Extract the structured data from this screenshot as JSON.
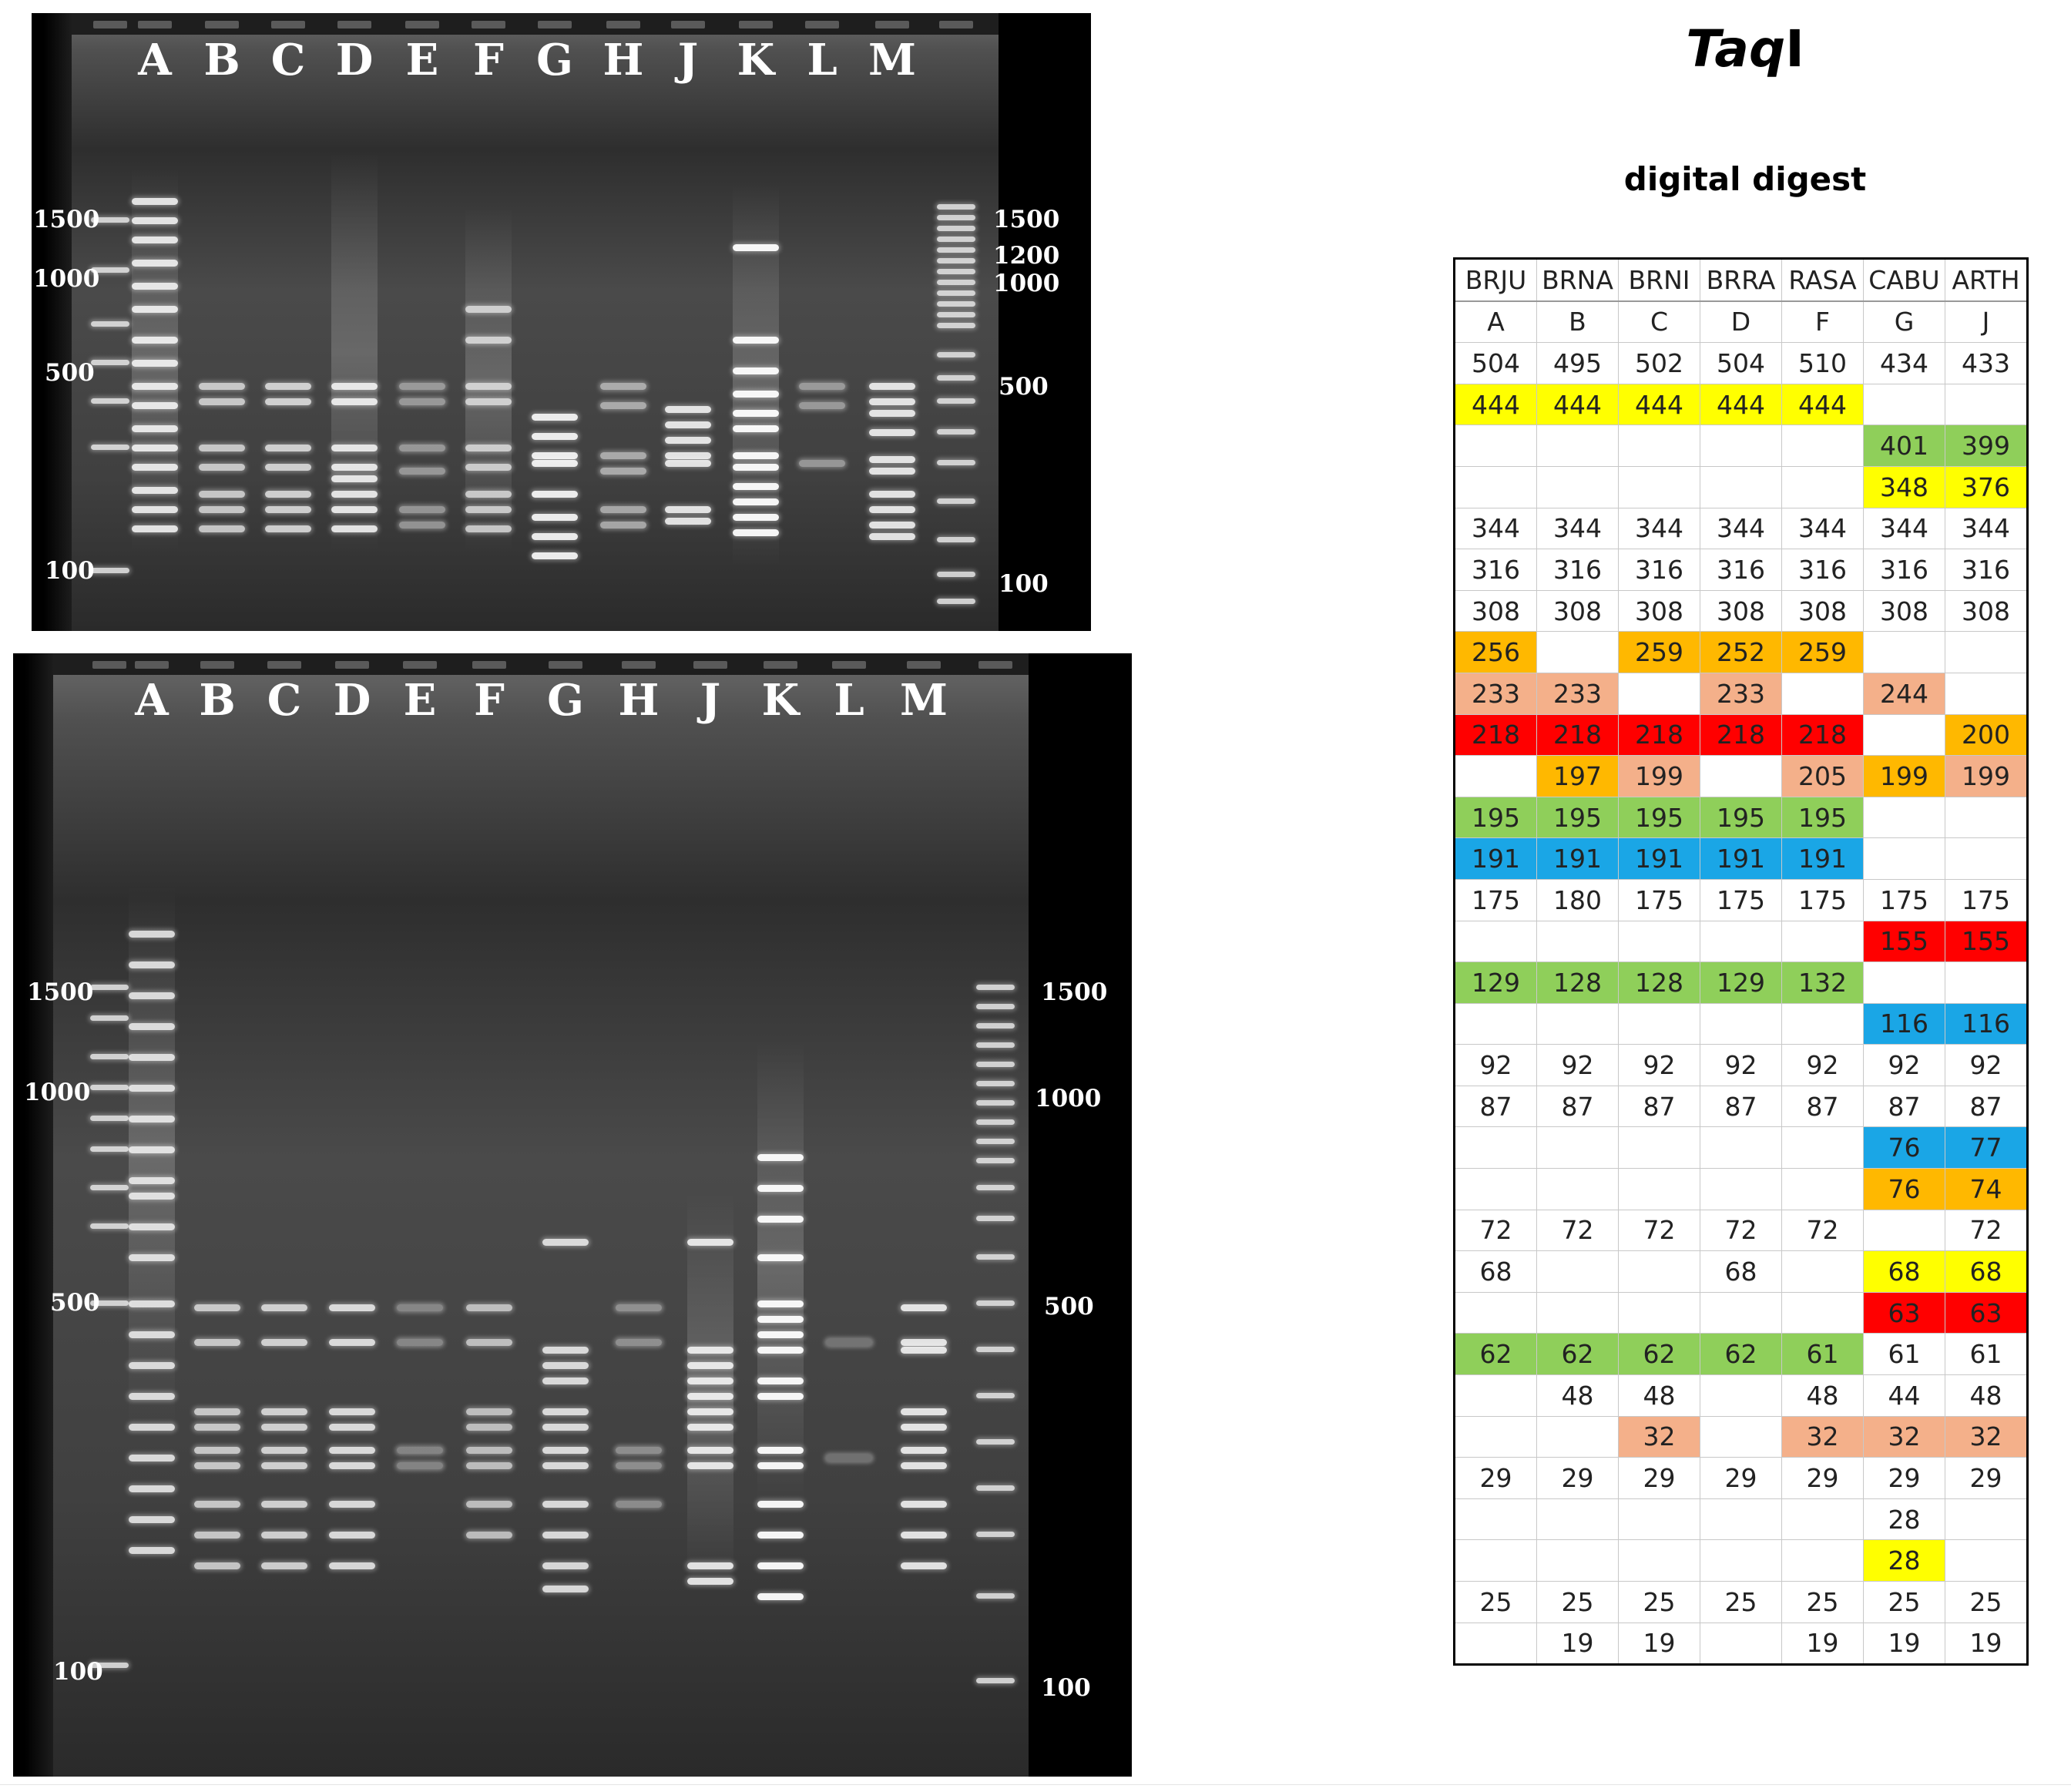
{
  "gel_top": {
    "lanes": [
      "A",
      "B",
      "C",
      "D",
      "E",
      "F",
      "G",
      "H",
      "J",
      "K",
      "L",
      "M"
    ],
    "left_marker_labels": [
      "1500",
      "1000",
      "500",
      "100"
    ],
    "right_marker_labels": [
      "1500",
      "1200",
      "1000",
      "500",
      "100"
    ]
  },
  "gel_bottom": {
    "lanes": [
      "A",
      "B",
      "C",
      "D",
      "E",
      "F",
      "G",
      "H",
      "J",
      "K",
      "L",
      "M"
    ],
    "left_marker_labels": [
      "1500",
      "1000",
      "500",
      "100"
    ],
    "right_marker_labels": [
      "1500",
      "1000",
      "500",
      "100"
    ]
  },
  "title_main": "Taq",
  "title_suffix": "I",
  "subtitle": "digital digest",
  "table": {
    "headers": [
      "BRJU",
      "BRNA",
      "BRNI",
      "BRRA",
      "RASA",
      "CABU",
      "ARTH"
    ],
    "lanes": [
      "A",
      "B",
      "C",
      "D",
      "F",
      "G",
      "J"
    ],
    "colors": {
      "y": "#ffff00",
      "g": "#8fcf5a",
      "o": "#ffb800",
      "s": "#f4b08a",
      "r": "#ff0000",
      "b": "#1aa6e6"
    },
    "rows": [
      [
        [
          "504",
          ""
        ],
        [
          "495",
          ""
        ],
        [
          "502",
          ""
        ],
        [
          "504",
          ""
        ],
        [
          "510",
          ""
        ],
        [
          "434",
          ""
        ],
        [
          "433",
          ""
        ]
      ],
      [
        [
          "444",
          "y"
        ],
        [
          "444",
          "y"
        ],
        [
          "444",
          "y"
        ],
        [
          "444",
          "y"
        ],
        [
          "444",
          "y"
        ],
        [
          "",
          ""
        ],
        [
          "",
          ""
        ]
      ],
      [
        [
          "",
          ""
        ],
        [
          "",
          ""
        ],
        [
          "",
          ""
        ],
        [
          "",
          ""
        ],
        [
          "",
          ""
        ],
        [
          "401",
          "g"
        ],
        [
          "399",
          "g"
        ]
      ],
      [
        [
          "",
          ""
        ],
        [
          "",
          ""
        ],
        [
          "",
          ""
        ],
        [
          "",
          ""
        ],
        [
          "",
          ""
        ],
        [
          "348",
          "y"
        ],
        [
          "376",
          "y"
        ]
      ],
      [
        [
          "344",
          ""
        ],
        [
          "344",
          ""
        ],
        [
          "344",
          ""
        ],
        [
          "344",
          ""
        ],
        [
          "344",
          ""
        ],
        [
          "344",
          ""
        ],
        [
          "344",
          ""
        ]
      ],
      [
        [
          "316",
          ""
        ],
        [
          "316",
          ""
        ],
        [
          "316",
          ""
        ],
        [
          "316",
          ""
        ],
        [
          "316",
          ""
        ],
        [
          "316",
          ""
        ],
        [
          "316",
          ""
        ]
      ],
      [
        [
          "308",
          ""
        ],
        [
          "308",
          ""
        ],
        [
          "308",
          ""
        ],
        [
          "308",
          ""
        ],
        [
          "308",
          ""
        ],
        [
          "308",
          ""
        ],
        [
          "308",
          ""
        ]
      ],
      [
        [
          "256",
          "o"
        ],
        [
          "",
          ""
        ],
        [
          "259",
          "o"
        ],
        [
          "252",
          "o"
        ],
        [
          "259",
          "o"
        ],
        [
          "",
          ""
        ],
        [
          "",
          ""
        ]
      ],
      [
        [
          "233",
          "s"
        ],
        [
          "233",
          "s"
        ],
        [
          "",
          ""
        ],
        [
          "233",
          "s"
        ],
        [
          "",
          ""
        ],
        [
          "244",
          "s"
        ],
        [
          "",
          ""
        ]
      ],
      [
        [
          "218",
          "r"
        ],
        [
          "218",
          "r"
        ],
        [
          "218",
          "r"
        ],
        [
          "218",
          "r"
        ],
        [
          "218",
          "r"
        ],
        [
          "",
          ""
        ],
        [
          "200",
          "o"
        ]
      ],
      [
        [
          "",
          ""
        ],
        [
          "197",
          "o"
        ],
        [
          "199",
          "s"
        ],
        [
          "",
          ""
        ],
        [
          "205",
          "s"
        ],
        [
          "199",
          "o"
        ],
        [
          "199",
          "s"
        ]
      ],
      [
        [
          "195",
          "g"
        ],
        [
          "195",
          "g"
        ],
        [
          "195",
          "g"
        ],
        [
          "195",
          "g"
        ],
        [
          "195",
          "g"
        ],
        [
          "",
          ""
        ],
        [
          "",
          ""
        ]
      ],
      [
        [
          "191",
          "b"
        ],
        [
          "191",
          "b"
        ],
        [
          "191",
          "b"
        ],
        [
          "191",
          "b"
        ],
        [
          "191",
          "b"
        ],
        [
          "",
          ""
        ],
        [
          "",
          ""
        ]
      ],
      [
        [
          "175",
          ""
        ],
        [
          "180",
          ""
        ],
        [
          "175",
          ""
        ],
        [
          "175",
          ""
        ],
        [
          "175",
          ""
        ],
        [
          "175",
          ""
        ],
        [
          "175",
          ""
        ]
      ],
      [
        [
          "",
          ""
        ],
        [
          "",
          ""
        ],
        [
          "",
          ""
        ],
        [
          "",
          ""
        ],
        [
          "",
          ""
        ],
        [
          "155",
          "r"
        ],
        [
          "155",
          "r"
        ]
      ],
      [
        [
          "129",
          "g"
        ],
        [
          "128",
          "g"
        ],
        [
          "128",
          "g"
        ],
        [
          "129",
          "g"
        ],
        [
          "132",
          "g"
        ],
        [
          "",
          ""
        ],
        [
          "",
          ""
        ]
      ],
      [
        [
          "",
          ""
        ],
        [
          "",
          ""
        ],
        [
          "",
          ""
        ],
        [
          "",
          ""
        ],
        [
          "",
          ""
        ],
        [
          "116",
          "b"
        ],
        [
          "116",
          "b"
        ]
      ],
      [
        [
          "92",
          ""
        ],
        [
          "92",
          ""
        ],
        [
          "92",
          ""
        ],
        [
          "92",
          ""
        ],
        [
          "92",
          ""
        ],
        [
          "92",
          ""
        ],
        [
          "92",
          ""
        ]
      ],
      [
        [
          "87",
          ""
        ],
        [
          "87",
          ""
        ],
        [
          "87",
          ""
        ],
        [
          "87",
          ""
        ],
        [
          "87",
          ""
        ],
        [
          "87",
          ""
        ],
        [
          "87",
          ""
        ]
      ],
      [
        [
          "",
          ""
        ],
        [
          "",
          ""
        ],
        [
          "",
          ""
        ],
        [
          "",
          ""
        ],
        [
          "",
          ""
        ],
        [
          "76",
          "b"
        ],
        [
          "77",
          "b"
        ]
      ],
      [
        [
          "",
          ""
        ],
        [
          "",
          ""
        ],
        [
          "",
          ""
        ],
        [
          "",
          ""
        ],
        [
          "",
          ""
        ],
        [
          "76",
          "o"
        ],
        [
          "74",
          "o"
        ]
      ],
      [
        [
          "72",
          ""
        ],
        [
          "72",
          ""
        ],
        [
          "72",
          ""
        ],
        [
          "72",
          ""
        ],
        [
          "72",
          ""
        ],
        [
          "",
          ""
        ],
        [
          "72",
          ""
        ]
      ],
      [
        [
          "68",
          ""
        ],
        [
          "",
          ""
        ],
        [
          "",
          ""
        ],
        [
          "68",
          ""
        ],
        [
          "",
          ""
        ],
        [
          "68",
          "y"
        ],
        [
          "68",
          "y"
        ]
      ],
      [
        [
          "",
          ""
        ],
        [
          "",
          ""
        ],
        [
          "",
          ""
        ],
        [
          "",
          ""
        ],
        [
          "",
          ""
        ],
        [
          "63",
          "r"
        ],
        [
          "63",
          "r"
        ]
      ],
      [
        [
          "62",
          "g"
        ],
        [
          "62",
          "g"
        ],
        [
          "62",
          "g"
        ],
        [
          "62",
          "g"
        ],
        [
          "61",
          "g"
        ],
        [
          "61",
          ""
        ],
        [
          "61",
          ""
        ]
      ],
      [
        [
          "",
          ""
        ],
        [
          "48",
          ""
        ],
        [
          "48",
          ""
        ],
        [
          "",
          ""
        ],
        [
          "48",
          ""
        ],
        [
          "44",
          ""
        ],
        [
          "48",
          ""
        ]
      ],
      [
        [
          "",
          ""
        ],
        [
          "",
          ""
        ],
        [
          "32",
          "s"
        ],
        [
          "",
          ""
        ],
        [
          "32",
          "s"
        ],
        [
          "32",
          "s"
        ],
        [
          "32",
          "s"
        ]
      ],
      [
        [
          "29",
          ""
        ],
        [
          "29",
          ""
        ],
        [
          "29",
          ""
        ],
        [
          "29",
          ""
        ],
        [
          "29",
          ""
        ],
        [
          "29",
          ""
        ],
        [
          "29",
          ""
        ]
      ],
      [
        [
          "",
          ""
        ],
        [
          "",
          ""
        ],
        [
          "",
          ""
        ],
        [
          "",
          ""
        ],
        [
          "",
          ""
        ],
        [
          "28",
          ""
        ],
        [
          "",
          ""
        ]
      ],
      [
        [
          "",
          ""
        ],
        [
          "",
          ""
        ],
        [
          "",
          ""
        ],
        [
          "",
          ""
        ],
        [
          "",
          ""
        ],
        [
          "28",
          "y"
        ],
        [
          "",
          ""
        ]
      ],
      [
        [
          "25",
          ""
        ],
        [
          "25",
          ""
        ],
        [
          "25",
          ""
        ],
        [
          "25",
          ""
        ],
        [
          "25",
          ""
        ],
        [
          "25",
          ""
        ],
        [
          "25",
          ""
        ]
      ],
      [
        [
          "",
          ""
        ],
        [
          "19",
          ""
        ],
        [
          "19",
          ""
        ],
        [
          "",
          ""
        ],
        [
          "19",
          ""
        ],
        [
          "19",
          ""
        ],
        [
          "19",
          ""
        ]
      ]
    ]
  }
}
